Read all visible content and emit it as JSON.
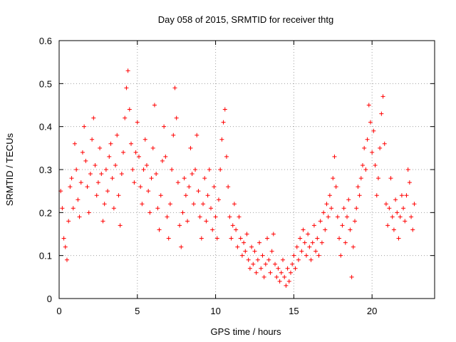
{
  "chart_data": {
    "type": "scatter",
    "title": "Day 058 of 2015, SRMTID for receiver thtg",
    "xlabel": "GPS time / hours",
    "ylabel": "SRMTID / TECUs",
    "xlim": [
      0,
      24
    ],
    "ylim": [
      0,
      0.6
    ],
    "xticks": [
      0,
      5,
      10,
      15,
      20
    ],
    "yticks": [
      0,
      0.1,
      0.2,
      0.3,
      0.4,
      0.5,
      0.6
    ],
    "xtick_labels": [
      "0",
      "5",
      "10",
      "15",
      "20"
    ],
    "ytick_labels": [
      "0",
      "0.1",
      "0.2",
      "0.3",
      "0.4",
      "0.5",
      "0.6"
    ],
    "grid": true,
    "marker": "+",
    "color": "#ff0000",
    "series": [
      {
        "name": "SRMTID",
        "points": [
          [
            0.1,
            0.25
          ],
          [
            0.2,
            0.21
          ],
          [
            0.3,
            0.14
          ],
          [
            0.4,
            0.12
          ],
          [
            0.5,
            0.09
          ],
          [
            0.6,
            0.18
          ],
          [
            0.7,
            0.26
          ],
          [
            0.8,
            0.28
          ],
          [
            0.9,
            0.21
          ],
          [
            1.0,
            0.36
          ],
          [
            1.1,
            0.3
          ],
          [
            1.2,
            0.23
          ],
          [
            1.3,
            0.19
          ],
          [
            1.4,
            0.27
          ],
          [
            1.5,
            0.34
          ],
          [
            1.6,
            0.4
          ],
          [
            1.7,
            0.32
          ],
          [
            1.8,
            0.26
          ],
          [
            1.9,
            0.2
          ],
          [
            2.0,
            0.29
          ],
          [
            2.1,
            0.37
          ],
          [
            2.2,
            0.42
          ],
          [
            2.3,
            0.31
          ],
          [
            2.4,
            0.24
          ],
          [
            2.5,
            0.27
          ],
          [
            2.6,
            0.35
          ],
          [
            2.7,
            0.29
          ],
          [
            2.8,
            0.18
          ],
          [
            2.9,
            0.22
          ],
          [
            3.0,
            0.3
          ],
          [
            3.1,
            0.25
          ],
          [
            3.2,
            0.33
          ],
          [
            3.3,
            0.36
          ],
          [
            3.4,
            0.28
          ],
          [
            3.5,
            0.21
          ],
          [
            3.6,
            0.31
          ],
          [
            3.7,
            0.38
          ],
          [
            3.8,
            0.24
          ],
          [
            3.9,
            0.17
          ],
          [
            4.0,
            0.29
          ],
          [
            4.1,
            0.34
          ],
          [
            4.2,
            0.42
          ],
          [
            4.3,
            0.49
          ],
          [
            4.4,
            0.53
          ],
          [
            4.5,
            0.44
          ],
          [
            4.6,
            0.36
          ],
          [
            4.7,
            0.3
          ],
          [
            4.8,
            0.27
          ],
          [
            4.9,
            0.34
          ],
          [
            5.0,
            0.41
          ],
          [
            5.1,
            0.33
          ],
          [
            5.2,
            0.26
          ],
          [
            5.3,
            0.22
          ],
          [
            5.4,
            0.3
          ],
          [
            5.5,
            0.37
          ],
          [
            5.6,
            0.31
          ],
          [
            5.7,
            0.25
          ],
          [
            5.8,
            0.2
          ],
          [
            5.9,
            0.28
          ],
          [
            6.0,
            0.35
          ],
          [
            6.1,
            0.45
          ],
          [
            6.2,
            0.29
          ],
          [
            6.3,
            0.21
          ],
          [
            6.4,
            0.16
          ],
          [
            6.5,
            0.24
          ],
          [
            6.6,
            0.32
          ],
          [
            6.7,
            0.4
          ],
          [
            6.8,
            0.33
          ],
          [
            6.9,
            0.19
          ],
          [
            7.0,
            0.14
          ],
          [
            7.1,
            0.22
          ],
          [
            7.2,
            0.3
          ],
          [
            7.3,
            0.38
          ],
          [
            7.4,
            0.49
          ],
          [
            7.5,
            0.42
          ],
          [
            7.6,
            0.27
          ],
          [
            7.7,
            0.17
          ],
          [
            7.8,
            0.12
          ],
          [
            7.9,
            0.2
          ],
          [
            8.0,
            0.28
          ],
          [
            8.1,
            0.24
          ],
          [
            8.2,
            0.18
          ],
          [
            8.3,
            0.26
          ],
          [
            8.4,
            0.35
          ],
          [
            8.5,
            0.29
          ],
          [
            8.6,
            0.22
          ],
          [
            8.7,
            0.3
          ],
          [
            8.8,
            0.38
          ],
          [
            8.9,
            0.25
          ],
          [
            9.0,
            0.19
          ],
          [
            9.1,
            0.14
          ],
          [
            9.2,
            0.22
          ],
          [
            9.3,
            0.28
          ],
          [
            9.4,
            0.18
          ],
          [
            9.5,
            0.24
          ],
          [
            9.6,
            0.3
          ],
          [
            9.7,
            0.21
          ],
          [
            9.8,
            0.16
          ],
          [
            9.9,
            0.26
          ],
          [
            10.0,
            0.19
          ],
          [
            10.1,
            0.14
          ],
          [
            10.2,
            0.23
          ],
          [
            10.3,
            0.3
          ],
          [
            10.4,
            0.37
          ],
          [
            10.5,
            0.41
          ],
          [
            10.6,
            0.44
          ],
          [
            10.7,
            0.33
          ],
          [
            10.8,
            0.26
          ],
          [
            10.9,
            0.19
          ],
          [
            11.0,
            0.14
          ],
          [
            11.1,
            0.17
          ],
          [
            11.2,
            0.22
          ],
          [
            11.3,
            0.16
          ],
          [
            11.4,
            0.12
          ],
          [
            11.5,
            0.19
          ],
          [
            11.6,
            0.14
          ],
          [
            11.7,
            0.1
          ],
          [
            11.8,
            0.13
          ],
          [
            11.9,
            0.11
          ],
          [
            12.0,
            0.15
          ],
          [
            12.1,
            0.09
          ],
          [
            12.2,
            0.07
          ],
          [
            12.3,
            0.12
          ],
          [
            12.4,
            0.08
          ],
          [
            12.5,
            0.11
          ],
          [
            12.6,
            0.06
          ],
          [
            12.7,
            0.09
          ],
          [
            12.8,
            0.13
          ],
          [
            12.9,
            0.07
          ],
          [
            13.0,
            0.1
          ],
          [
            13.1,
            0.05
          ],
          [
            13.2,
            0.08
          ],
          [
            13.3,
            0.14
          ],
          [
            13.4,
            0.09
          ],
          [
            13.5,
            0.06
          ],
          [
            13.6,
            0.11
          ],
          [
            13.7,
            0.15
          ],
          [
            13.8,
            0.08
          ],
          [
            13.9,
            0.05
          ],
          [
            14.0,
            0.07
          ],
          [
            14.1,
            0.04
          ],
          [
            14.2,
            0.06
          ],
          [
            14.3,
            0.09
          ],
          [
            14.4,
            0.05
          ],
          [
            14.5,
            0.03
          ],
          [
            14.6,
            0.07
          ],
          [
            14.7,
            0.04
          ],
          [
            14.8,
            0.06
          ],
          [
            14.9,
            0.08
          ],
          [
            15.0,
            0.1
          ],
          [
            15.1,
            0.07
          ],
          [
            15.2,
            0.12
          ],
          [
            15.3,
            0.09
          ],
          [
            15.4,
            0.14
          ],
          [
            15.5,
            0.11
          ],
          [
            15.6,
            0.16
          ],
          [
            15.7,
            0.13
          ],
          [
            15.8,
            0.1
          ],
          [
            15.9,
            0.15
          ],
          [
            16.0,
            0.12
          ],
          [
            16.1,
            0.09
          ],
          [
            16.2,
            0.13
          ],
          [
            16.3,
            0.17
          ],
          [
            16.4,
            0.11
          ],
          [
            16.5,
            0.14
          ],
          [
            16.6,
            0.1
          ],
          [
            16.7,
            0.18
          ],
          [
            16.8,
            0.13
          ],
          [
            16.9,
            0.2
          ],
          [
            17.0,
            0.16
          ],
          [
            17.1,
            0.22
          ],
          [
            17.2,
            0.19
          ],
          [
            17.3,
            0.24
          ],
          [
            17.4,
            0.21
          ],
          [
            17.5,
            0.28
          ],
          [
            17.6,
            0.33
          ],
          [
            17.7,
            0.26
          ],
          [
            17.8,
            0.19
          ],
          [
            17.9,
            0.14
          ],
          [
            18.0,
            0.1
          ],
          [
            18.1,
            0.17
          ],
          [
            18.2,
            0.21
          ],
          [
            18.3,
            0.13
          ],
          [
            18.4,
            0.19
          ],
          [
            18.5,
            0.23
          ],
          [
            18.6,
            0.16
          ],
          [
            18.7,
            0.05
          ],
          [
            18.8,
            0.12
          ],
          [
            18.9,
            0.18
          ],
          [
            19.0,
            0.21
          ],
          [
            19.1,
            0.26
          ],
          [
            19.2,
            0.24
          ],
          [
            19.3,
            0.28
          ],
          [
            19.4,
            0.31
          ],
          [
            19.5,
            0.35
          ],
          [
            19.6,
            0.3
          ],
          [
            19.7,
            0.37
          ],
          [
            19.8,
            0.45
          ],
          [
            19.9,
            0.41
          ],
          [
            20.0,
            0.34
          ],
          [
            20.1,
            0.39
          ],
          [
            20.2,
            0.31
          ],
          [
            20.3,
            0.24
          ],
          [
            20.4,
            0.28
          ],
          [
            20.5,
            0.35
          ],
          [
            20.6,
            0.43
          ],
          [
            20.7,
            0.47
          ],
          [
            20.8,
            0.36
          ],
          [
            20.9,
            0.22
          ],
          [
            21.0,
            0.17
          ],
          [
            21.1,
            0.21
          ],
          [
            21.2,
            0.28
          ],
          [
            21.3,
            0.19
          ],
          [
            21.4,
            0.16
          ],
          [
            21.5,
            0.23
          ],
          [
            21.6,
            0.2
          ],
          [
            21.7,
            0.14
          ],
          [
            21.8,
            0.19
          ],
          [
            21.9,
            0.24
          ],
          [
            22.0,
            0.21
          ],
          [
            22.1,
            0.18
          ],
          [
            22.2,
            0.24
          ],
          [
            22.3,
            0.3
          ],
          [
            22.4,
            0.27
          ],
          [
            22.5,
            0.19
          ],
          [
            22.6,
            0.16
          ],
          [
            22.7,
            0.22
          ]
        ]
      }
    ]
  }
}
